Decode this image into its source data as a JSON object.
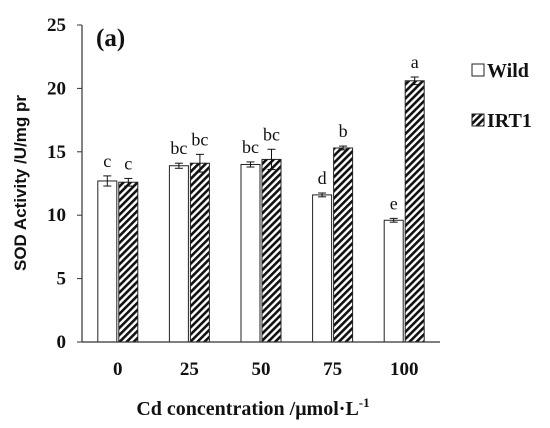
{
  "chart_data": {
    "type": "bar",
    "panel_label": "(a)",
    "xlabel": "Cd concentration /μmol·L",
    "xlabel_sup": "-1",
    "ylabel": "SOD Activity /U/mg pr",
    "ylim": [
      0,
      25
    ],
    "yticks": [
      "0",
      "5",
      "10",
      "15",
      "20",
      "25"
    ],
    "categories": [
      "0",
      "25",
      "50",
      "75",
      "100"
    ],
    "legend_position": "right",
    "series": [
      {
        "name": "Wild",
        "pattern": "solid",
        "values": [
          12.7,
          13.9,
          14.0,
          11.6,
          9.6
        ],
        "errors": [
          0.4,
          0.2,
          0.2,
          0.15,
          0.15
        ],
        "letters": [
          "c",
          "bc",
          "bc",
          "d",
          "e"
        ]
      },
      {
        "name": "IRT1",
        "pattern": "hatched",
        "values": [
          12.6,
          14.1,
          14.4,
          15.3,
          20.6
        ],
        "errors": [
          0.3,
          0.7,
          0.8,
          0.15,
          0.3
        ],
        "letters": [
          "c",
          "bc",
          "bc",
          "b",
          "a"
        ]
      }
    ],
    "colors": {
      "bar_fill": "#ffffff",
      "hatch": "#111111",
      "axis": "#333333"
    }
  }
}
